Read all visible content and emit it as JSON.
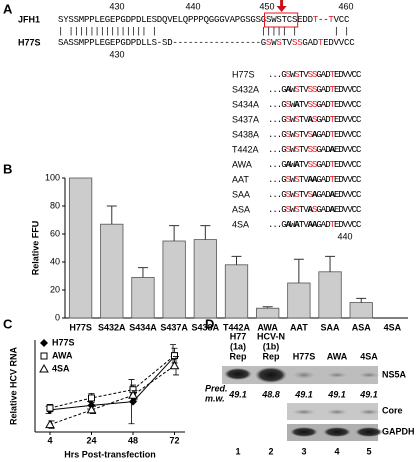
{
  "panel_a": {
    "label": "A",
    "top_ticks": [
      430,
      440,
      450,
      460
    ],
    "bottom_ticks": [
      430,
      440
    ],
    "rows": [
      {
        "name": "JFH1",
        "sequence": "SYSSMPPLEGEPGDPDLESDQVELQPPPQGGGVAPGSGSGSWSTCSEDDT--TVCC",
        "red": [
          49,
          52
        ]
      },
      {
        "name": "H77S",
        "sequence": "SASSMPPLEGEPGDPDLLS-SD-----------------GSWSTVSSGADTEDVVCC",
        "red": [
          40,
          42,
          45,
          46,
          50
        ]
      }
    ],
    "match_line": "| ||||||||||||||| |                    ||||| |       | |",
    "mutants": [
      {
        "name": "H77S",
        "sequence": "...GSWSTVSSGADTEDVVCC",
        "red": [
          4,
          6,
          9,
          10,
          14
        ],
        "bold": []
      },
      {
        "name": "S432A",
        "sequence": "...GAWSTVSSGADTEDVVCC",
        "red": [
          6,
          9,
          10,
          14
        ],
        "bold": [
          4
        ]
      },
      {
        "name": "S434A",
        "sequence": "...GSWATVSSGADTEDVVCC",
        "red": [
          4,
          9,
          10,
          14
        ],
        "bold": [
          6
        ]
      },
      {
        "name": "S437A",
        "sequence": "...GSWSTVASGADTEDVVCC",
        "red": [
          4,
          6,
          10,
          14
        ],
        "bold": [
          9
        ]
      },
      {
        "name": "S438A",
        "sequence": "...GSWSTVSAGADTEDVVCC",
        "red": [
          4,
          6,
          9,
          14
        ],
        "bold": [
          10
        ]
      },
      {
        "name": "T442A",
        "sequence": "...GSWSTVSSGADAEDVVCC",
        "red": [
          4,
          6,
          9,
          10
        ],
        "bold": [
          14
        ]
      },
      {
        "name": "AWA",
        "sequence": "...GAWATVSSGADTEDVVCC",
        "red": [
          9,
          10,
          14
        ],
        "bold": [
          4,
          6
        ]
      },
      {
        "name": "AAT",
        "sequence": "...GSWSTVAAGADTEDVVCC",
        "red": [
          4,
          6,
          14
        ],
        "bold": [
          9,
          10
        ]
      },
      {
        "name": "SAA",
        "sequence": "...GSWSTVSAGADAEDVVCC",
        "red": [
          4,
          6,
          9
        ],
        "bold": [
          10,
          14
        ]
      },
      {
        "name": "ASA",
        "sequence": "...GSWSTVASGADAEDVVCC",
        "red": [
          4,
          6,
          10
        ],
        "bold": [
          9,
          14
        ]
      },
      {
        "name": "4SA",
        "sequence": "...GAWATVAAGADTEDVVCC",
        "red": [
          14
        ],
        "bold": [
          4,
          6,
          9,
          10
        ]
      }
    ]
  },
  "chart_data": [
    {
      "type": "bar",
      "label": "B",
      "ylabel": "Relative FFU",
      "color": "#cccccc",
      "categories": [
        "H77S",
        "S432A",
        "S434A",
        "S437A",
        "S438A",
        "T442A",
        "AWA",
        "AAT",
        "SAA",
        "ASA",
        "4SA"
      ],
      "values": [
        100,
        67,
        29,
        55,
        56,
        38,
        7,
        25,
        33,
        11,
        0
      ],
      "errors": [
        null,
        13,
        7,
        11,
        10,
        6,
        1,
        17,
        11,
        3,
        null
      ],
      "ylim": [
        0,
        100
      ],
      "yticks": [
        0,
        20,
        40,
        60,
        80,
        100
      ]
    },
    {
      "type": "line",
      "label": "C",
      "ylabel": "Relative HCV RNA",
      "xlabel": "Hrs Post-transfection",
      "categories": [
        "4",
        "24",
        "48",
        "72"
      ],
      "ylim": [
        0,
        100
      ],
      "series": [
        {
          "name": "H77S",
          "color": "#000000",
          "marker": "diamond",
          "dashed": false,
          "values": [
            24,
            29,
            33,
            82
          ],
          "errors": [
            4,
            4,
            24,
            13
          ]
        },
        {
          "name": "AWA",
          "color": "#000000",
          "marker": "square",
          "dashed": true,
          "values": [
            26,
            37,
            46,
            83
          ],
          "errors": [
            4,
            5,
            5,
            8
          ]
        },
        {
          "name": "4SA",
          "color": "#000000",
          "marker": "triangle",
          "dashed": true,
          "values": [
            8,
            24,
            40,
            72
          ],
          "errors": [
            4,
            4,
            5,
            10
          ]
        }
      ]
    }
  ],
  "panel_d": {
    "label": "D",
    "mw_label": [
      "Pred.",
      "m.w."
    ],
    "lanes": [
      {
        "header": [
          "H77",
          "(1a)",
          "Rep"
        ],
        "mw": 49.1,
        "number": 1
      },
      {
        "header": [
          "HCV-N",
          "(1b)",
          "Rep"
        ],
        "mw": 48.8,
        "number": 2
      },
      {
        "header": [
          "H77S"
        ],
        "mw": 49.1,
        "number": 3
      },
      {
        "header": [
          "AWA"
        ],
        "mw": 49.1,
        "number": 4
      },
      {
        "header": [
          "4SA"
        ],
        "mw": 49.1,
        "number": 5
      }
    ],
    "blots": [
      "NS5A",
      "Core",
      "GAPDH"
    ]
  }
}
